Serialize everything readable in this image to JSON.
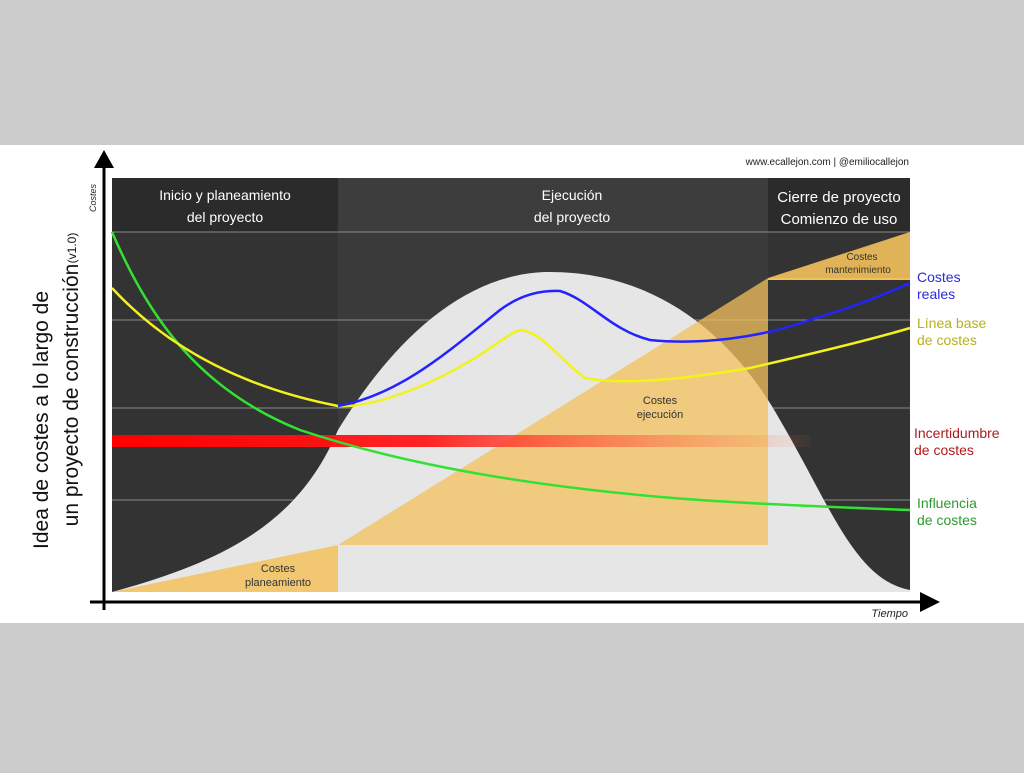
{
  "title": {
    "line1": "Idea de costes a lo largo de",
    "line2": "un proyecto de construcción",
    "version": "(v1.0)"
  },
  "credit": "www.ecallejon.com | @emiliocallejon",
  "axes": {
    "y": "Costes",
    "x": "Tiempo"
  },
  "phases": [
    {
      "line1": "Inicio y planeamiento",
      "line2": "del proyecto"
    },
    {
      "line1": "Ejecución",
      "line2": "del proyecto"
    },
    {
      "line1": "Cierre de proyecto",
      "line2": "Comienzo de uso"
    }
  ],
  "areas": {
    "planeamiento": {
      "line1": "Costes",
      "line2": "planeamiento"
    },
    "ejecucion": {
      "line1": "Costes",
      "line2": "ejecución"
    },
    "mantenimiento": {
      "line1": "Costes",
      "line2": "mantenimiento"
    }
  },
  "legend": {
    "reales": {
      "line1": "Costes",
      "line2": "reales",
      "color": "#2b2bd9"
    },
    "base": {
      "line1": "Línea base",
      "line2": "de costes",
      "color": "#b8b01c"
    },
    "incertidumbre": {
      "line1": "Incertidumbre",
      "line2": "de costes",
      "color": "#b01a1a"
    },
    "influencia": {
      "line1": "Influencia",
      "line2": "de costes",
      "color": "#2e9a2e"
    }
  },
  "colors": {
    "plot_bg": "#3a3a3a",
    "header_bg": "#2c2c2c",
    "bell": "#e6e6e6",
    "cost_area": "#f3c15c",
    "real": "#2323ff",
    "base": "#f2f21e",
    "influence": "#33e033",
    "uncertainty": "#ff0a0a"
  }
}
